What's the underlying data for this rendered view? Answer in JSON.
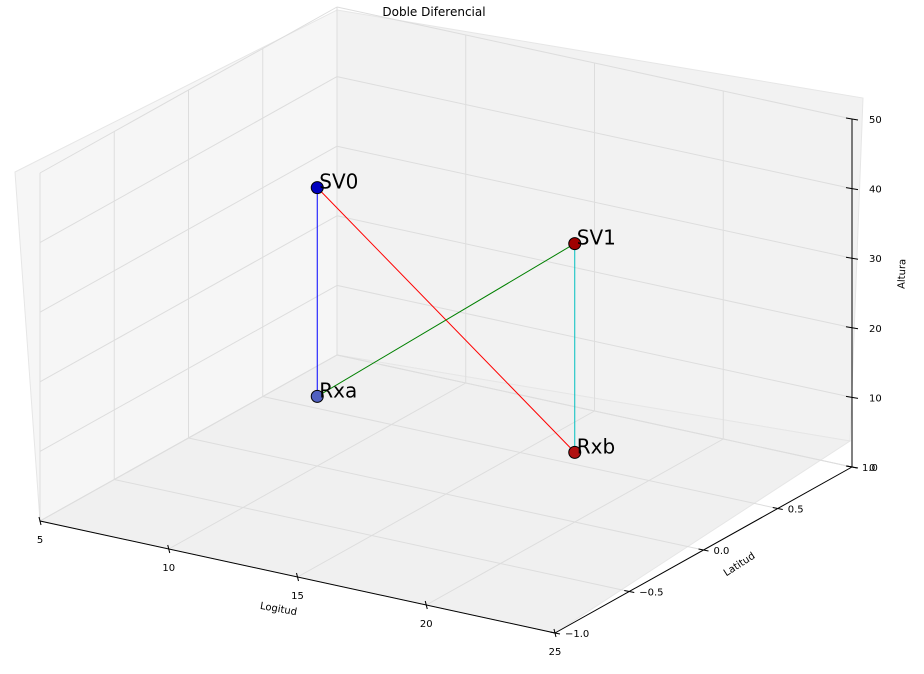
{
  "chart_data": {
    "type": "scatter3d",
    "title": "Doble Diferencial",
    "xlabel": "Logitud",
    "ylabel": "Latitud",
    "zlabel": "Altura",
    "xlim": [
      5,
      25
    ],
    "ylim": [
      -1.0,
      1.0
    ],
    "zlim": [
      0,
      50
    ],
    "x_ticks": [
      "5",
      "10",
      "15",
      "20",
      "25"
    ],
    "y_ticks": [
      "−1.0",
      "−0.5",
      "0.0",
      "0.5",
      "1.0"
    ],
    "z_ticks": [
      "0",
      "10",
      "20",
      "30",
      "40",
      "50"
    ],
    "points": [
      {
        "name": "SV0",
        "x": 10,
        "y": 0,
        "z": 40,
        "color": "#0000bf"
      },
      {
        "name": "SV1",
        "x": 20,
        "y": 0,
        "z": 40,
        "color": "#a00000"
      },
      {
        "name": "Rxa",
        "x": 10,
        "y": 0,
        "z": 10,
        "color": "#5060c0"
      },
      {
        "name": "Rxb",
        "x": 20,
        "y": 0,
        "z": 10,
        "color": "#b01010"
      }
    ],
    "lines": [
      {
        "from": "SV0",
        "to": "Rxa",
        "color": "#0000ff"
      },
      {
        "from": "SV0",
        "to": "Rxb",
        "color": "#ff0000"
      },
      {
        "from": "SV1",
        "to": "Rxa",
        "color": "#008000"
      },
      {
        "from": "SV1",
        "to": "Rxb",
        "color": "#00bfbf"
      }
    ]
  }
}
